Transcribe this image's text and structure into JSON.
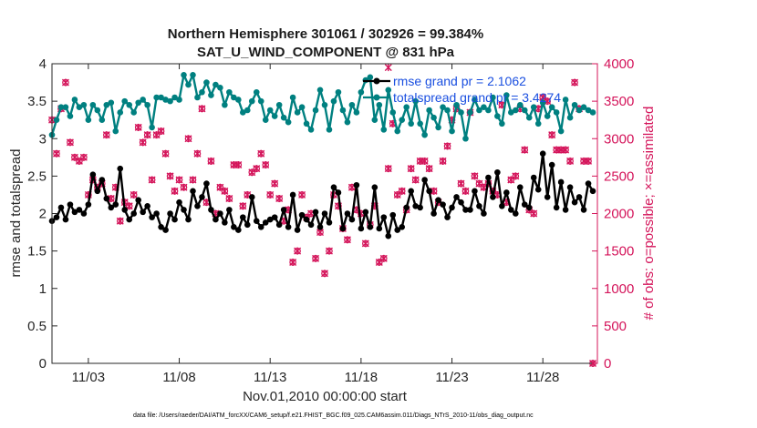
{
  "chart_data": {
    "type": "line",
    "title": "Northern Hemisphere 301061 / 302926 = 99.384%",
    "subtitle": "SAT_U_WIND_COMPONENT @ 831 hPa",
    "xlabel": "Nov.01,2010 00:00:00 start",
    "ylabel": "rmse and totalspread",
    "ylabel_right": "# of obs: o=possible; ×=assimilated",
    "xlim": [
      1,
      31
    ],
    "ylim": [
      0,
      4
    ],
    "ylim_right": [
      0,
      4000
    ],
    "x_ticks": [
      3,
      8,
      13,
      18,
      23,
      28
    ],
    "x_tick_labels": [
      "11/03",
      "11/08",
      "11/13",
      "11/18",
      "11/23",
      "11/28"
    ],
    "y_ticks": [
      0,
      0.5,
      1,
      1.5,
      2,
      2.5,
      3,
      3.5,
      4
    ],
    "y_tick_labels": [
      "0",
      "0.5",
      "1",
      "1.5",
      "2",
      "2.5",
      "3",
      "3.5",
      "4"
    ],
    "y_right_ticks": [
      0,
      500,
      1000,
      1500,
      2000,
      2500,
      3000,
      3500,
      4000
    ],
    "y_right_tick_labels": [
      "0",
      "500",
      "1000",
      "1500",
      "2000",
      "2500",
      "3000",
      "3500",
      "4000"
    ],
    "legend": [
      {
        "label": "rmse grand pr = 2.1062",
        "color": "#000000"
      },
      {
        "label": "totalspread grand pr = 3.4274",
        "color": "#008080"
      }
    ],
    "series": [
      {
        "name": "rmse",
        "color": "#000000",
        "marker": "dot",
        "x": [
          1.0,
          1.25,
          1.5,
          1.75,
          2.0,
          2.25,
          2.5,
          2.75,
          3.0,
          3.25,
          3.5,
          3.75,
          4.0,
          4.25,
          4.5,
          4.75,
          5.0,
          5.25,
          5.5,
          5.75,
          6.0,
          6.25,
          6.5,
          6.75,
          7.0,
          7.25,
          7.5,
          7.75,
          8.0,
          8.25,
          8.5,
          8.75,
          9.0,
          9.25,
          9.5,
          9.75,
          10.0,
          10.25,
          10.5,
          10.75,
          11.0,
          11.25,
          11.5,
          11.75,
          12.0,
          12.25,
          12.5,
          12.75,
          13.0,
          13.25,
          13.5,
          13.75,
          14.0,
          14.25,
          14.5,
          14.75,
          15.0,
          15.25,
          15.5,
          15.75,
          16.0,
          16.25,
          16.5,
          16.75,
          17.0,
          17.25,
          17.5,
          17.75,
          18.0,
          18.25,
          18.5,
          18.75,
          19.0,
          19.25,
          19.5,
          19.75,
          20.0,
          20.25,
          20.5,
          20.75,
          21.0,
          21.25,
          21.5,
          21.75,
          22.0,
          22.25,
          22.5,
          22.75,
          23.0,
          23.25,
          23.5,
          23.75,
          24.0,
          24.25,
          24.5,
          24.75,
          25.0,
          25.25,
          25.5,
          25.75,
          26.0,
          26.25,
          26.5,
          26.75,
          27.0,
          27.25,
          27.5,
          27.75,
          28.0,
          28.25,
          28.5,
          28.75,
          29.0,
          29.25,
          29.5,
          29.75,
          30.0,
          30.25,
          30.5,
          30.75
        ],
        "y": [
          1.9,
          1.95,
          2.08,
          1.92,
          2.12,
          2.02,
          2.05,
          2.0,
          2.12,
          2.52,
          2.3,
          2.45,
          2.2,
          2.08,
          2.12,
          2.6,
          2.05,
          1.92,
          2.0,
          2.18,
          2.02,
          2.1,
          1.95,
          2.0,
          1.82,
          1.78,
          2.0,
          1.92,
          2.15,
          2.05,
          1.92,
          2.3,
          2.1,
          2.22,
          2.4,
          2.05,
          1.92,
          2.0,
          1.88,
          2.05,
          1.82,
          1.78,
          1.95,
          1.85,
          2.22,
          1.9,
          1.82,
          1.88,
          1.92,
          1.95,
          1.85,
          2.05,
          1.82,
          2.25,
          1.78,
          1.98,
          1.92,
          1.85,
          2.02,
          1.82,
          2.0,
          1.88,
          2.35,
          2.28,
          1.8,
          2.0,
          1.92,
          2.38,
          1.8,
          2.02,
          1.82,
          2.35,
          1.8,
          1.95,
          1.7,
          1.98,
          1.78,
          1.82,
          2.08,
          2.3,
          2.1,
          2.08,
          2.45,
          2.3,
          2.0,
          2.18,
          2.12,
          1.95,
          2.08,
          2.22,
          2.15,
          2.05,
          2.05,
          2.3,
          2.1,
          2.0,
          2.48,
          2.22,
          2.55,
          2.1,
          2.28,
          2.05,
          2.0,
          2.35,
          2.12,
          2.08,
          2.48,
          2.32,
          2.8,
          2.22,
          2.65,
          2.08,
          2.42,
          2.05,
          2.35,
          2.15,
          2.22,
          2.05,
          2.4,
          2.3
        ],
        "color_rgb": "black"
      },
      {
        "name": "totalspread",
        "color": "#008080",
        "marker": "dot",
        "x": [
          1.0,
          1.25,
          1.5,
          1.75,
          2.0,
          2.25,
          2.5,
          2.75,
          3.0,
          3.25,
          3.5,
          3.75,
          4.0,
          4.25,
          4.5,
          4.75,
          5.0,
          5.25,
          5.5,
          5.75,
          6.0,
          6.25,
          6.5,
          6.75,
          7.0,
          7.25,
          7.5,
          7.75,
          8.0,
          8.25,
          8.5,
          8.75,
          9.0,
          9.25,
          9.5,
          9.75,
          10.0,
          10.25,
          10.5,
          10.75,
          11.0,
          11.25,
          11.5,
          11.75,
          12.0,
          12.25,
          12.5,
          12.75,
          13.0,
          13.25,
          13.5,
          13.75,
          14.0,
          14.25,
          14.5,
          14.75,
          15.0,
          15.25,
          15.5,
          15.75,
          16.0,
          16.25,
          16.5,
          16.75,
          17.0,
          17.25,
          17.5,
          17.75,
          18.0,
          18.25,
          18.5,
          18.75,
          19.0,
          19.25,
          19.5,
          19.75,
          20.0,
          20.25,
          20.5,
          20.75,
          21.0,
          21.25,
          21.5,
          21.75,
          22.0,
          22.25,
          22.5,
          22.75,
          23.0,
          23.25,
          23.5,
          23.75,
          24.0,
          24.25,
          24.5,
          24.75,
          25.0,
          25.25,
          25.5,
          25.75,
          26.0,
          26.25,
          26.5,
          26.75,
          27.0,
          27.25,
          27.5,
          27.75,
          28.0,
          28.25,
          28.5,
          28.75,
          29.0,
          29.25,
          29.5,
          29.75,
          30.0,
          30.25,
          30.5,
          30.75
        ],
        "y": [
          3.05,
          3.25,
          3.42,
          3.42,
          3.3,
          3.52,
          3.42,
          3.45,
          3.25,
          3.45,
          3.38,
          3.25,
          3.45,
          3.48,
          3.1,
          3.35,
          3.5,
          3.45,
          3.35,
          3.48,
          3.52,
          3.45,
          3.15,
          3.55,
          3.55,
          3.52,
          3.5,
          3.55,
          3.52,
          3.85,
          3.72,
          3.85,
          3.55,
          3.62,
          3.75,
          3.58,
          3.72,
          3.68,
          3.45,
          3.62,
          3.55,
          3.52,
          3.35,
          3.38,
          3.5,
          3.62,
          3.5,
          3.25,
          3.38,
          3.3,
          3.45,
          3.28,
          3.22,
          3.55,
          3.35,
          3.42,
          3.2,
          3.12,
          3.38,
          3.65,
          3.45,
          3.12,
          3.5,
          3.62,
          3.38,
          3.22,
          3.45,
          3.35,
          3.62,
          3.78,
          3.82,
          3.25,
          3.45,
          3.12,
          3.65,
          3.35,
          3.1,
          3.25,
          3.42,
          3.2,
          3.5,
          3.2,
          3.05,
          3.38,
          3.28,
          3.15,
          3.42,
          3.38,
          3.1,
          3.45,
          3.35,
          3.0,
          3.35,
          3.52,
          3.38,
          3.42,
          3.38,
          3.55,
          3.3,
          3.2,
          3.58,
          3.35,
          3.38,
          3.45,
          3.38,
          3.28,
          3.42,
          3.2,
          3.48,
          3.3,
          3.42,
          3.35,
          3.1,
          3.52,
          3.28,
          3.45,
          3.38,
          3.42,
          3.38,
          3.35
        ]
      }
    ],
    "obs_possible": {
      "name": "possible",
      "axis": "right",
      "color": "#d4145a",
      "marker": "o",
      "x": [
        1.0,
        1.25,
        1.5,
        1.75,
        2.0,
        2.25,
        2.5,
        2.75,
        3.0,
        3.25,
        3.5,
        3.75,
        4.0,
        4.25,
        4.5,
        4.75,
        5.0,
        5.25,
        5.5,
        5.75,
        6.0,
        6.25,
        6.5,
        6.75,
        7.0,
        7.25,
        7.5,
        7.75,
        8.0,
        8.25,
        8.5,
        8.75,
        9.0,
        9.25,
        9.5,
        9.75,
        10.0,
        10.25,
        10.5,
        10.75,
        11.0,
        11.25,
        11.5,
        11.75,
        12.0,
        12.25,
        12.5,
        12.75,
        13.0,
        13.25,
        13.5,
        13.75,
        14.0,
        14.25,
        14.5,
        14.75,
        15.0,
        15.25,
        15.5,
        15.75,
        16.0,
        16.25,
        16.5,
        16.75,
        17.0,
        17.25,
        17.5,
        17.75,
        18.0,
        18.25,
        18.5,
        18.75,
        19.0,
        19.25,
        19.5,
        19.75,
        20.0,
        20.25,
        20.5,
        20.75,
        21.0,
        21.25,
        21.5,
        21.75,
        22.0,
        22.25,
        22.5,
        22.75,
        23.0,
        23.25,
        23.5,
        23.75,
        24.0,
        24.25,
        24.5,
        24.75,
        25.0,
        25.25,
        25.5,
        25.75,
        26.0,
        26.25,
        26.5,
        26.75,
        27.0,
        27.25,
        27.5,
        27.75,
        28.0,
        28.25,
        28.5,
        28.75,
        29.0,
        29.25,
        29.5,
        29.75,
        30.0,
        30.25,
        30.5,
        30.75
      ],
      "y": [
        3250,
        2800,
        3400,
        3750,
        2950,
        2750,
        2700,
        2750,
        2250,
        2450,
        2350,
        2400,
        3050,
        2200,
        2350,
        1900,
        2150,
        2100,
        2250,
        3150,
        2950,
        3050,
        2450,
        3050,
        3100,
        2800,
        2500,
        2300,
        2450,
        2350,
        3000,
        2450,
        2800,
        3400,
        2150,
        2700,
        2000,
        2350,
        2300,
        2200,
        2650,
        2650,
        2100,
        2250,
        2550,
        2600,
        2800,
        2650,
        2250,
        2400,
        2200,
        1900,
        2050,
        1350,
        1500,
        2250,
        1950,
        2000,
        1400,
        1750,
        1200,
        1500,
        2250,
        2100,
        1800,
        1650,
        2350,
        2050,
        2000,
        1600,
        1850,
        2100,
        1350,
        1400,
        2600,
        3200,
        2250,
        2300,
        2050,
        2600,
        2450,
        2700,
        2700,
        2600,
        2300,
        2150,
        2700,
        2900,
        3250,
        3400,
        2400,
        2300,
        3350,
        2500,
        2400,
        2350,
        2400,
        2300,
        2250,
        3450,
        2150,
        2450,
        2500,
        3400,
        2850,
        2050,
        2000,
        3400,
        3550,
        3500,
        3050,
        2850,
        2850,
        2850,
        2700,
        3750,
        3400,
        2700,
        2700,
        0
      ]
    },
    "obs_assimilated": {
      "name": "assimilated",
      "axis": "right",
      "color": "#d4145a",
      "marker": "x",
      "x": [
        1.0,
        1.25,
        1.5,
        1.75,
        2.0,
        2.25,
        2.5,
        2.75,
        3.0,
        3.25,
        3.5,
        3.75,
        4.0,
        4.25,
        4.5,
        4.75,
        5.0,
        5.25,
        5.5,
        5.75,
        6.0,
        6.25,
        6.5,
        6.75,
        7.0,
        7.25,
        7.5,
        7.75,
        8.0,
        8.25,
        8.5,
        8.75,
        9.0,
        9.25,
        9.5,
        9.75,
        10.0,
        10.25,
        10.5,
        10.75,
        11.0,
        11.25,
        11.5,
        11.75,
        12.0,
        12.25,
        12.5,
        12.75,
        13.0,
        13.25,
        13.5,
        13.75,
        14.0,
        14.25,
        14.5,
        14.75,
        15.0,
        15.25,
        15.5,
        15.75,
        16.0,
        16.25,
        16.5,
        16.75,
        17.0,
        17.25,
        17.5,
        17.75,
        18.0,
        18.25,
        18.5,
        18.75,
        19.0,
        19.25,
        19.5,
        19.75,
        20.0,
        20.25,
        20.5,
        20.75,
        21.0,
        21.25,
        21.5,
        21.75,
        22.0,
        22.25,
        22.5,
        22.75,
        23.0,
        23.25,
        23.5,
        23.75,
        24.0,
        24.25,
        24.5,
        24.75,
        25.0,
        25.25,
        25.5,
        25.75,
        26.0,
        26.25,
        26.5,
        26.75,
        27.0,
        27.25,
        27.5,
        27.75,
        28.0,
        28.25,
        28.5,
        28.75,
        29.0,
        29.25,
        29.5,
        29.75,
        30.0,
        30.25,
        30.5,
        30.75
      ],
      "y": [
        3250,
        2800,
        3400,
        3750,
        2950,
        2750,
        2700,
        2750,
        2250,
        2450,
        2350,
        2400,
        3050,
        2200,
        2350,
        1900,
        2150,
        2100,
        2250,
        3150,
        2950,
        3050,
        2450,
        3050,
        3100,
        2800,
        2500,
        2300,
        2450,
        2350,
        3000,
        2450,
        2800,
        3400,
        2150,
        2700,
        2000,
        2350,
        2300,
        2200,
        2650,
        2650,
        2100,
        2250,
        2550,
        2600,
        2800,
        2650,
        2250,
        2400,
        2200,
        1900,
        2050,
        1350,
        1500,
        2250,
        1950,
        2000,
        1400,
        1750,
        1200,
        1500,
        2250,
        2100,
        1800,
        1650,
        2350,
        2050,
        2000,
        1600,
        1850,
        2100,
        1350,
        1400,
        2600,
        3200,
        2250,
        2300,
        2050,
        2600,
        2450,
        2700,
        2700,
        2600,
        2300,
        2150,
        2700,
        2900,
        3250,
        3400,
        2400,
        2300,
        3350,
        2500,
        2400,
        2350,
        2400,
        2300,
        2250,
        3450,
        2150,
        2450,
        2500,
        3400,
        2850,
        2050,
        2000,
        3400,
        3550,
        3500,
        3050,
        2850,
        2850,
        2850,
        2700,
        3750,
        3400,
        2700,
        2700,
        0
      ]
    },
    "extra_obs_points": [
      {
        "x": 19.5,
        "y": 3950
      }
    ],
    "footnote": "data file: /Users/raeder/DAI/ATM_forcXX/CAM6_setup/f.e21.FHIST_BGC.f09_025.CAM6assim.011/Diags_NTrS_2010-11/obs_diag_output.nc",
    "grid": false,
    "legend_position": "top-right"
  }
}
